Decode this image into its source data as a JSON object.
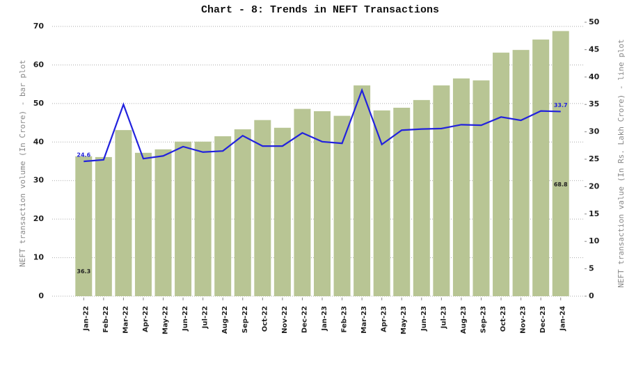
{
  "chart_data": {
    "type": "bar-line",
    "title": "Chart - 8: Trends in NEFT Transactions",
    "y_label": "NEFT transaction volume (In Crore) - bar plot",
    "y2_label": "NEFT transaction value (In Rs. Lakh Crore) - line plot",
    "categories": [
      "Jan-22",
      "Feb-22",
      "Mar-22",
      "Apr-22",
      "May-22",
      "Jun-22",
      "Jul-22",
      "Aug-22",
      "Sep-22",
      "Oct-22",
      "Nov-22",
      "Dec-22",
      "Jan-23",
      "Feb-23",
      "Mar-23",
      "Apr-23",
      "May-23",
      "Jun-23",
      "Jul-23",
      "Aug-23",
      "Sep-23",
      "Oct-23",
      "Nov-23",
      "Dec-23",
      "Jan-24"
    ],
    "series": [
      {
        "type": "bar",
        "color": "#b8c594",
        "values": [
          36.3,
          36.1,
          43.1,
          37.2,
          38.1,
          40.1,
          40.1,
          41.5,
          43.3,
          45.7,
          43.7,
          48.6,
          48.0,
          46.8,
          54.7,
          48.2,
          48.9,
          50.9,
          54.7,
          56.5,
          56.0,
          63.2,
          63.9,
          66.6,
          68.8
        ]
      },
      {
        "type": "line",
        "axis": "y2",
        "color": "#2222dd",
        "values": [
          24.6,
          24.9,
          35.0,
          25.1,
          25.6,
          27.3,
          26.3,
          26.5,
          29.3,
          27.4,
          27.4,
          29.8,
          28.2,
          27.9,
          37.6,
          27.7,
          30.3,
          30.5,
          30.6,
          31.3,
          31.2,
          32.7,
          32.1,
          33.8,
          33.7
        ]
      }
    ],
    "ylim": [
      0,
      70
    ],
    "yticks": [
      0,
      10,
      20,
      30,
      40,
      50,
      60,
      70
    ],
    "y2lim": [
      0,
      50
    ],
    "y2ticks": [
      0,
      5,
      10,
      15,
      20,
      25,
      30,
      35,
      40,
      45,
      50
    ],
    "grid": true
  }
}
